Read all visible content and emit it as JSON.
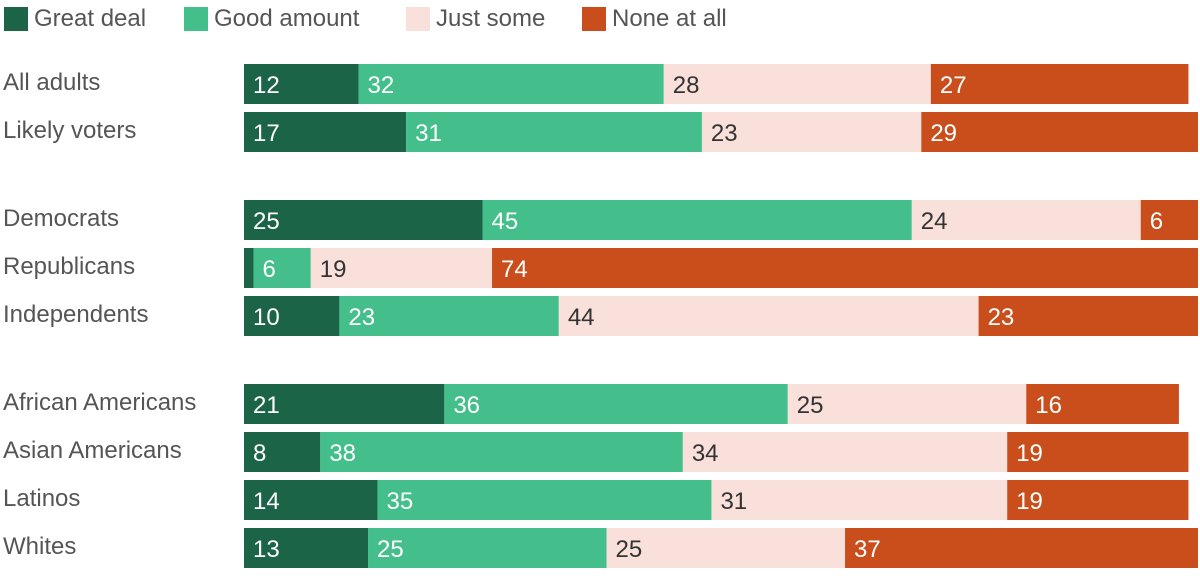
{
  "chart_data": {
    "type": "bar",
    "orientation": "horizontal",
    "stacked": true,
    "legend_position": "top-left",
    "colors": {
      "Great deal": "#1b6448",
      "Good amount": "#44bf8c",
      "Just some": "#f9e0da",
      "None at all": "#c94e1c"
    },
    "label_colors": {
      "Great deal": "#ffffff",
      "Good amount": "#ffffff",
      "Just some": "#333333",
      "None at all": "#ffffff"
    },
    "categories": [
      "All adults",
      "Likely voters",
      "Democrats",
      "Republicans",
      "Independents",
      "African Americans",
      "Asian Americans",
      "Latinos",
      "Whites"
    ],
    "groups": [
      [
        0,
        1
      ],
      [
        2,
        3,
        4
      ],
      [
        5,
        6,
        7,
        8
      ]
    ],
    "series": [
      {
        "name": "Great deal",
        "values": [
          12,
          17,
          25,
          1,
          10,
          21,
          8,
          14,
          13
        ],
        "labels": [
          "12",
          "17",
          "25",
          "",
          "10",
          "21",
          "8",
          "14",
          "13"
        ]
      },
      {
        "name": "Good amount",
        "values": [
          32,
          31,
          45,
          6,
          23,
          36,
          38,
          35,
          25
        ],
        "labels": [
          "32",
          "31",
          "45",
          "6",
          "23",
          "36",
          "38",
          "35",
          "25"
        ]
      },
      {
        "name": "Just some",
        "values": [
          28,
          23,
          24,
          19,
          44,
          25,
          34,
          31,
          25
        ],
        "labels": [
          "28",
          "23",
          "24",
          "19",
          "44",
          "25",
          "34",
          "31",
          "25"
        ]
      },
      {
        "name": "None at all",
        "values": [
          27,
          29,
          6,
          74,
          23,
          16,
          19,
          19,
          37
        ],
        "labels": [
          "27",
          "29",
          "6",
          "74",
          "23",
          "16",
          "19",
          "19",
          "37"
        ]
      }
    ],
    "xlim": [
      0,
      100
    ]
  }
}
